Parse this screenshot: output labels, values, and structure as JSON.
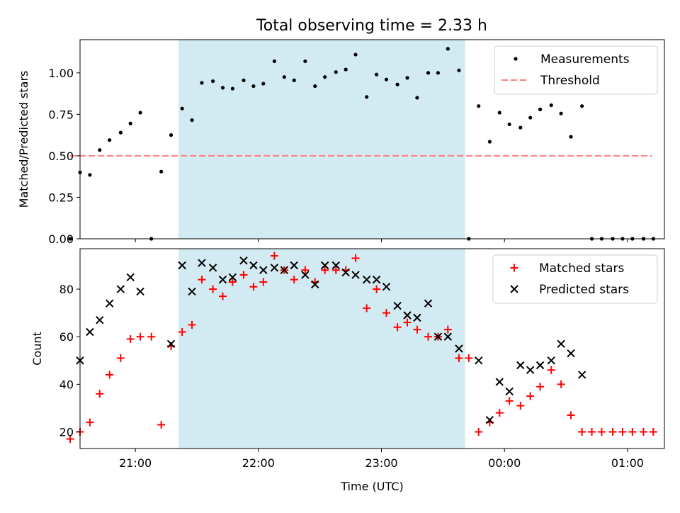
{
  "title": "Total observing time = 2.33 h",
  "colors": {
    "measurement": "#000000",
    "threshold": "#ff7f7f",
    "matched": "#ff0000",
    "predicted": "#000000",
    "shade": "#add8e6"
  },
  "chart_data": [
    {
      "type": "scatter",
      "panel": "top",
      "ylabel": "Matched/Predicted stars",
      "xlabel": "",
      "ylim": [
        0,
        1.2
      ],
      "yticks": [
        0.0,
        0.25,
        0.5,
        0.75,
        1.0
      ],
      "ytick_labels": [
        "0.00",
        "0.25",
        "0.50",
        "0.75",
        "1.00"
      ],
      "xlim_hours": [
        20.55,
        25.3
      ],
      "shaded_span_hours": [
        21.35,
        23.68
      ],
      "legend": {
        "placement": "top-right",
        "entries": [
          "Measurements",
          "Threshold"
        ]
      },
      "threshold": {
        "name": "Threshold",
        "y": 0.5,
        "x_range_hours": [
          20.47,
          25.2
        ]
      },
      "series": [
        {
          "name": "Measurements",
          "marker": "dot",
          "x_hours": [
            20.47,
            20.55,
            20.63,
            20.71,
            20.79,
            20.88,
            20.96,
            21.04,
            21.13,
            21.21,
            21.29,
            21.38,
            21.46,
            21.54,
            21.63,
            21.71,
            21.79,
            21.88,
            21.96,
            22.04,
            22.13,
            22.21,
            22.29,
            22.38,
            22.46,
            22.54,
            22.63,
            22.71,
            22.79,
            22.88,
            22.96,
            23.04,
            23.13,
            23.21,
            23.29,
            23.38,
            23.46,
            23.54,
            23.63,
            23.71,
            23.79,
            23.88,
            23.96,
            24.04,
            24.13,
            24.21,
            24.29,
            24.38,
            24.46,
            24.54,
            24.63,
            24.71,
            24.79,
            24.88,
            24.96,
            25.04,
            25.13,
            25.21
          ],
          "y": [
            0.0,
            0.4,
            0.385,
            0.535,
            0.595,
            0.64,
            0.695,
            0.76,
            0.0,
            0.405,
            0.625,
            0.785,
            0.715,
            0.94,
            0.95,
            0.91,
            0.905,
            0.955,
            0.92,
            0.935,
            1.07,
            0.975,
            0.955,
            1.07,
            0.92,
            0.975,
            1.005,
            1.02,
            1.11,
            0.855,
            0.99,
            0.96,
            0.93,
            0.97,
            0.85,
            1.0,
            1.0,
            1.145,
            1.015,
            0.0,
            0.8,
            0.585,
            0.76,
            0.69,
            0.67,
            0.73,
            0.78,
            0.805,
            0.755,
            0.615,
            0.8,
            0.0,
            0.0,
            0.0,
            0.0,
            0.0,
            0.0,
            0.0
          ]
        }
      ]
    },
    {
      "type": "scatter",
      "panel": "bottom",
      "xlabel": "Time (UTC)",
      "ylabel": "Count",
      "ylim": [
        13,
        97
      ],
      "yticks": [
        20,
        40,
        60,
        80
      ],
      "ytick_labels": [
        "20",
        "40",
        "60",
        "80"
      ],
      "xlim_hours": [
        20.55,
        25.3
      ],
      "xticks_hours": [
        21,
        22,
        23,
        24,
        25
      ],
      "xtick_labels": [
        "21:00",
        "22:00",
        "23:00",
        "00:00",
        "01:00"
      ],
      "shaded_span_hours": [
        21.35,
        23.68
      ],
      "legend": {
        "placement": "top-right",
        "entries": [
          "Matched stars",
          "Predicted stars"
        ]
      },
      "series": [
        {
          "name": "Matched stars",
          "marker": "plus",
          "x_hours": [
            20.47,
            20.55,
            20.63,
            20.71,
            20.79,
            20.88,
            20.96,
            21.04,
            21.13,
            21.21,
            21.29,
            21.38,
            21.46,
            21.54,
            21.63,
            21.71,
            21.79,
            21.88,
            21.96,
            22.04,
            22.13,
            22.21,
            22.29,
            22.38,
            22.46,
            22.54,
            22.63,
            22.71,
            22.79,
            22.88,
            22.96,
            23.04,
            23.13,
            23.21,
            23.29,
            23.38,
            23.46,
            23.54,
            23.63,
            23.71,
            23.79,
            23.88,
            23.96,
            24.04,
            24.13,
            24.21,
            24.29,
            24.38,
            24.46,
            24.54,
            24.63,
            24.71,
            24.79,
            24.88,
            24.96,
            25.04,
            25.13,
            25.21
          ],
          "y": [
            17,
            20,
            24,
            36,
            44,
            51,
            59,
            60,
            60,
            23,
            56,
            62,
            65,
            84,
            80,
            77,
            83,
            86,
            81,
            83,
            94,
            88,
            84,
            88,
            83,
            88,
            88,
            88,
            93,
            72,
            80,
            70,
            64,
            66,
            63,
            60,
            60,
            63,
            51,
            51,
            20,
            24,
            28,
            33,
            31,
            35,
            39,
            46,
            40,
            27,
            20,
            20,
            20,
            20,
            20,
            20,
            20,
            20
          ]
        },
        {
          "name": "Predicted stars",
          "marker": "x",
          "x_hours": [
            20.55,
            20.63,
            20.71,
            20.79,
            20.88,
            20.96,
            21.04,
            21.29,
            21.38,
            21.46,
            21.54,
            21.63,
            21.71,
            21.79,
            21.88,
            21.96,
            22.04,
            22.13,
            22.21,
            22.29,
            22.38,
            22.46,
            22.54,
            22.63,
            22.71,
            22.79,
            22.88,
            22.96,
            23.04,
            23.13,
            23.21,
            23.29,
            23.38,
            23.46,
            23.54,
            23.63,
            23.79,
            23.88,
            23.96,
            24.04,
            24.13,
            24.21,
            24.29,
            24.38,
            24.46,
            24.54,
            24.63
          ],
          "y": [
            50,
            62,
            67,
            74,
            80,
            85,
            79,
            57,
            90,
            79,
            91,
            89,
            84,
            85,
            92,
            90,
            88,
            89,
            88,
            90,
            86,
            82,
            90,
            90,
            87,
            86,
            84,
            84,
            81,
            73,
            69,
            68,
            74,
            60,
            60,
            55,
            50,
            25,
            41,
            37,
            48,
            46,
            48,
            50,
            57,
            53,
            44
          ]
        }
      ]
    }
  ]
}
